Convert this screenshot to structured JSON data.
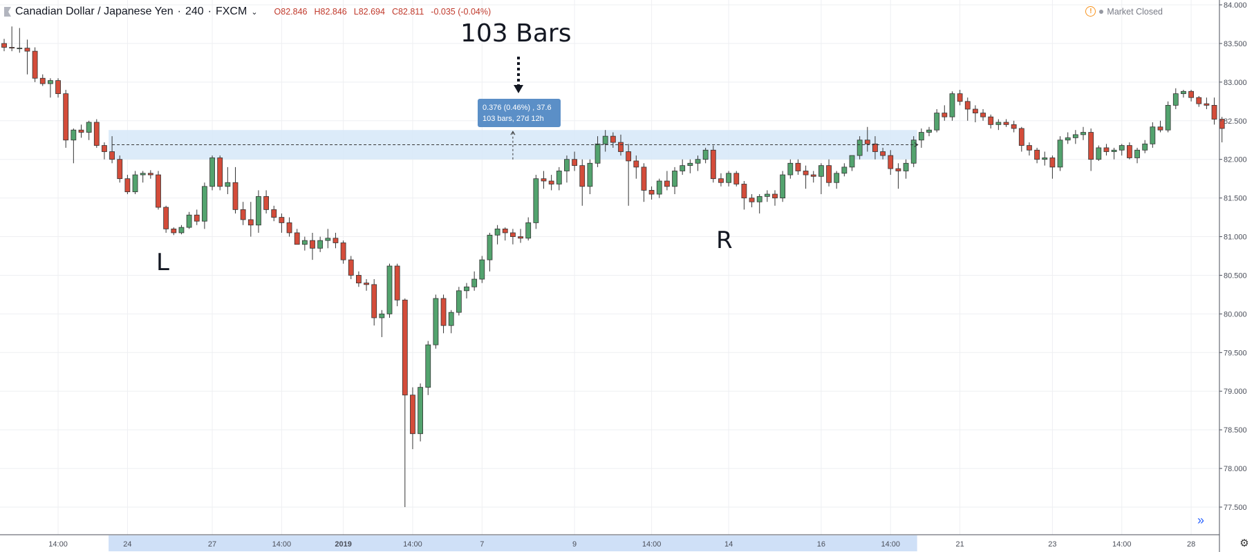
{
  "header": {
    "symbol": "Canadian Dollar / Japanese Yen",
    "interval": "240",
    "exchange": "FXCM",
    "open": "O82.846",
    "high": "H82.846",
    "low": "L82.694",
    "close": "C82.811",
    "change": "-0.035 (-0.04%)",
    "market_status": "Market Closed"
  },
  "annotations": {
    "bars_title": "103 Bars",
    "left_label": "L",
    "right_label": "R",
    "measure_line1": "0.376 (0.46%) , 37.6",
    "measure_line2": "103 bars, 27d 12h"
  },
  "colors": {
    "up": "#53a36e",
    "down": "#d44c3a",
    "zone": "#d6e7f8",
    "tooltip": "#5b8fc7"
  },
  "icons": [
    "flag-icon",
    "chevron-down-icon",
    "warning-icon",
    "gear-icon",
    "scroll-right-icon"
  ],
  "chart_data": {
    "type": "candlestick",
    "y_axis": {
      "ticks": [
        "84.000",
        "83.500",
        "83.000",
        "82.500",
        "82.000",
        "81.500",
        "81.000",
        "80.500",
        "80.000",
        "79.500",
        "79.000",
        "78.500",
        "78.000",
        "77.500"
      ],
      "min": 77.2,
      "max": 84.0
    },
    "x_axis": {
      "ticks": [
        {
          "label": "14:00",
          "bar": 7
        },
        {
          "label": "24",
          "bar": 16
        },
        {
          "label": "27",
          "bar": 27
        },
        {
          "label": "14:00",
          "bar": 36
        },
        {
          "label": "2019",
          "bar": 44
        },
        {
          "label": "14:00",
          "bar": 53
        },
        {
          "label": "7",
          "bar": 62
        },
        {
          "label": "9",
          "bar": 74
        },
        {
          "label": "14:00",
          "bar": 84
        },
        {
          "label": "14",
          "bar": 94
        },
        {
          "label": "16",
          "bar": 106
        },
        {
          "label": "14:00",
          "bar": 115
        },
        {
          "label": "21",
          "bar": 124
        },
        {
          "label": "23",
          "bar": 136
        },
        {
          "label": "14:00",
          "bar": 145
        },
        {
          "label": "28",
          "bar": 154
        }
      ]
    },
    "measure_zone": {
      "from_bar": 14,
      "to_bar": 118,
      "low": 82.0,
      "high": 82.38,
      "mid": 82.19
    },
    "candles": [
      [
        83.5,
        83.56,
        83.4,
        83.45
      ],
      [
        83.45,
        83.72,
        83.4,
        83.44
      ],
      [
        83.44,
        83.7,
        83.38,
        83.44
      ],
      [
        83.44,
        83.55,
        83.1,
        83.4
      ],
      [
        83.4,
        83.45,
        83.0,
        83.05
      ],
      [
        83.05,
        83.1,
        82.95,
        82.98
      ],
      [
        82.98,
        83.05,
        82.8,
        83.02
      ],
      [
        83.02,
        83.05,
        82.8,
        82.85
      ],
      [
        82.85,
        82.9,
        82.15,
        82.25
      ],
      [
        82.25,
        82.4,
        81.95,
        82.38
      ],
      [
        82.38,
        82.45,
        82.28,
        82.35
      ],
      [
        82.35,
        82.5,
        82.25,
        82.48
      ],
      [
        82.48,
        82.52,
        82.15,
        82.18
      ],
      [
        82.18,
        82.22,
        82.0,
        82.1
      ],
      [
        82.1,
        82.3,
        81.95,
        82.0
      ],
      [
        82.0,
        82.05,
        81.7,
        81.75
      ],
      [
        81.75,
        81.8,
        81.55,
        81.58
      ],
      [
        81.58,
        81.85,
        81.55,
        81.8
      ],
      [
        81.8,
        81.85,
        81.7,
        81.82
      ],
      [
        81.82,
        81.86,
        81.75,
        81.8
      ],
      [
        81.8,
        81.85,
        81.35,
        81.38
      ],
      [
        81.38,
        81.4,
        81.05,
        81.1
      ],
      [
        81.1,
        81.12,
        81.02,
        81.05
      ],
      [
        81.05,
        81.15,
        81.03,
        81.12
      ],
      [
        81.12,
        81.32,
        81.1,
        81.28
      ],
      [
        81.28,
        81.35,
        81.15,
        81.2
      ],
      [
        81.2,
        81.7,
        81.1,
        81.65
      ],
      [
        81.65,
        82.05,
        81.6,
        82.02
      ],
      [
        82.02,
        82.05,
        81.6,
        81.65
      ],
      [
        81.65,
        81.9,
        81.55,
        81.7
      ],
      [
        81.7,
        81.9,
        81.3,
        81.35
      ],
      [
        81.35,
        81.45,
        81.15,
        81.22
      ],
      [
        81.22,
        81.45,
        81.0,
        81.15
      ],
      [
        81.15,
        81.6,
        81.05,
        81.52
      ],
      [
        81.52,
        81.6,
        81.3,
        81.35
      ],
      [
        81.35,
        81.4,
        81.2,
        81.25
      ],
      [
        81.25,
        81.3,
        81.05,
        81.18
      ],
      [
        81.18,
        81.25,
        81.0,
        81.05
      ],
      [
        81.05,
        81.1,
        80.95,
        80.9
      ],
      [
        80.9,
        81.0,
        80.82,
        80.95
      ],
      [
        80.95,
        81.05,
        80.7,
        80.85
      ],
      [
        80.85,
        81.0,
        80.8,
        80.95
      ],
      [
        80.95,
        81.1,
        80.85,
        80.98
      ],
      [
        80.98,
        81.05,
        80.85,
        80.92
      ],
      [
        80.92,
        80.95,
        80.65,
        80.7
      ],
      [
        80.7,
        80.75,
        80.45,
        80.5
      ],
      [
        80.5,
        80.55,
        80.35,
        80.4
      ],
      [
        80.4,
        80.45,
        80.3,
        80.38
      ],
      [
        80.38,
        80.45,
        79.85,
        79.95
      ],
      [
        79.95,
        80.05,
        79.7,
        80.0
      ],
      [
        80.0,
        80.65,
        79.95,
        80.62
      ],
      [
        80.62,
        80.65,
        80.1,
        80.18
      ],
      [
        80.18,
        80.2,
        77.5,
        78.95
      ],
      [
        78.95,
        79.05,
        78.25,
        78.45
      ],
      [
        78.45,
        79.1,
        78.35,
        79.05
      ],
      [
        79.05,
        79.65,
        78.95,
        79.6
      ],
      [
        79.6,
        80.25,
        79.55,
        80.2
      ],
      [
        80.2,
        80.25,
        79.75,
        79.85
      ],
      [
        79.85,
        80.05,
        79.75,
        80.02
      ],
      [
        80.02,
        80.35,
        79.98,
        80.3
      ],
      [
        80.3,
        80.4,
        80.2,
        80.35
      ],
      [
        80.35,
        80.55,
        80.3,
        80.45
      ],
      [
        80.45,
        80.75,
        80.4,
        80.7
      ],
      [
        80.7,
        81.05,
        80.55,
        81.02
      ],
      [
        81.02,
        81.15,
        80.9,
        81.1
      ],
      [
        81.1,
        81.12,
        80.95,
        81.05
      ],
      [
        81.05,
        81.1,
        80.9,
        81.0
      ],
      [
        81.0,
        81.1,
        80.92,
        80.98
      ],
      [
        80.98,
        81.25,
        80.95,
        81.18
      ],
      [
        81.18,
        81.8,
        81.1,
        81.75
      ],
      [
        81.75,
        81.85,
        81.62,
        81.72
      ],
      [
        81.72,
        81.8,
        81.6,
        81.68
      ],
      [
        81.68,
        81.9,
        81.6,
        81.85
      ],
      [
        81.85,
        82.05,
        81.7,
        82.0
      ],
      [
        82.0,
        82.1,
        81.85,
        81.92
      ],
      [
        81.92,
        82.0,
        81.4,
        81.65
      ],
      [
        81.65,
        82.0,
        81.55,
        81.95
      ],
      [
        81.95,
        82.3,
        81.9,
        82.2
      ],
      [
        82.2,
        82.38,
        82.1,
        82.3
      ],
      [
        82.3,
        82.35,
        82.15,
        82.22
      ],
      [
        82.22,
        82.32,
        82.05,
        82.1
      ],
      [
        82.1,
        82.2,
        81.4,
        81.98
      ],
      [
        81.98,
        82.05,
        81.75,
        81.9
      ],
      [
        81.9,
        81.95,
        81.45,
        81.6
      ],
      [
        81.6,
        81.65,
        81.48,
        81.55
      ],
      [
        81.55,
        81.75,
        81.5,
        81.72
      ],
      [
        81.72,
        81.85,
        81.6,
        81.65
      ],
      [
        81.65,
        81.9,
        81.55,
        81.85
      ],
      [
        81.85,
        82.0,
        81.8,
        81.92
      ],
      [
        81.92,
        82.0,
        81.82,
        81.95
      ],
      [
        81.95,
        82.05,
        81.85,
        82.0
      ],
      [
        82.0,
        82.15,
        81.95,
        82.12
      ],
      [
        82.12,
        82.18,
        81.7,
        81.75
      ],
      [
        81.75,
        81.82,
        81.65,
        81.7
      ],
      [
        81.7,
        81.85,
        81.65,
        81.82
      ],
      [
        81.82,
        81.85,
        81.65,
        81.68
      ],
      [
        81.68,
        81.72,
        81.35,
        81.5
      ],
      [
        81.5,
        81.55,
        81.38,
        81.45
      ],
      [
        81.45,
        81.55,
        81.3,
        81.52
      ],
      [
        81.52,
        81.6,
        81.45,
        81.55
      ],
      [
        81.55,
        81.6,
        81.4,
        81.5
      ],
      [
        81.5,
        81.85,
        81.45,
        81.8
      ],
      [
        81.8,
        82.0,
        81.75,
        81.95
      ],
      [
        81.95,
        82.0,
        81.8,
        81.85
      ],
      [
        81.85,
        81.92,
        81.62,
        81.8
      ],
      [
        81.8,
        81.85,
        81.7,
        81.78
      ],
      [
        81.78,
        81.95,
        81.55,
        81.92
      ],
      [
        81.92,
        82.0,
        81.65,
        81.7
      ],
      [
        81.7,
        81.85,
        81.62,
        81.82
      ],
      [
        81.82,
        81.95,
        81.78,
        81.9
      ],
      [
        81.9,
        82.05,
        81.85,
        82.05
      ],
      [
        82.05,
        82.3,
        82.0,
        82.25
      ],
      [
        82.25,
        82.42,
        82.1,
        82.2
      ],
      [
        82.2,
        82.3,
        82.0,
        82.1
      ],
      [
        82.1,
        82.15,
        82.0,
        82.05
      ],
      [
        82.05,
        82.12,
        81.8,
        81.88
      ],
      [
        81.88,
        81.95,
        81.62,
        81.85
      ],
      [
        81.85,
        82.0,
        81.75,
        81.95
      ],
      [
        81.95,
        82.3,
        81.9,
        82.25
      ],
      [
        82.25,
        82.4,
        82.15,
        82.35
      ],
      [
        82.35,
        82.42,
        82.3,
        82.38
      ],
      [
        82.38,
        82.65,
        82.35,
        82.6
      ],
      [
        82.6,
        82.7,
        82.5,
        82.55
      ],
      [
        82.55,
        82.88,
        82.5,
        82.85
      ],
      [
        82.85,
        82.9,
        82.7,
        82.75
      ],
      [
        82.75,
        82.8,
        82.5,
        82.65
      ],
      [
        82.65,
        82.7,
        82.48,
        82.6
      ],
      [
        82.6,
        82.65,
        82.5,
        82.55
      ],
      [
        82.55,
        82.58,
        82.4,
        82.45
      ],
      [
        82.45,
        82.52,
        82.38,
        82.48
      ],
      [
        82.48,
        82.52,
        82.42,
        82.45
      ],
      [
        82.45,
        82.5,
        82.35,
        82.4
      ],
      [
        82.4,
        82.42,
        82.1,
        82.18
      ],
      [
        82.18,
        82.22,
        82.05,
        82.12
      ],
      [
        82.12,
        82.15,
        81.95,
        82.0
      ],
      [
        82.0,
        82.1,
        81.92,
        82.02
      ],
      [
        82.02,
        82.05,
        81.75,
        81.9
      ],
      [
        81.9,
        82.3,
        81.85,
        82.25
      ],
      [
        82.25,
        82.35,
        82.2,
        82.28
      ],
      [
        82.28,
        82.38,
        82.2,
        82.32
      ],
      [
        82.32,
        82.42,
        82.25,
        82.35
      ],
      [
        82.35,
        82.4,
        81.85,
        82.0
      ],
      [
        82.0,
        82.18,
        81.98,
        82.15
      ],
      [
        82.15,
        82.2,
        82.05,
        82.1
      ],
      [
        82.1,
        82.15,
        82.0,
        82.12
      ],
      [
        82.12,
        82.2,
        82.05,
        82.18
      ],
      [
        82.18,
        82.22,
        82.0,
        82.02
      ],
      [
        82.02,
        82.15,
        81.95,
        82.12
      ],
      [
        82.12,
        82.25,
        82.08,
        82.2
      ],
      [
        82.2,
        82.48,
        82.15,
        82.42
      ],
      [
        82.42,
        82.5,
        82.35,
        82.38
      ],
      [
        82.38,
        82.75,
        82.35,
        82.7
      ],
      [
        82.7,
        82.92,
        82.65,
        82.85
      ],
      [
        82.85,
        82.9,
        82.8,
        82.88
      ],
      [
        82.88,
        82.9,
        82.75,
        82.8
      ],
      [
        82.8,
        82.82,
        82.68,
        82.72
      ],
      [
        82.72,
        82.8,
        82.65,
        82.7
      ],
      [
        82.7,
        82.8,
        82.45,
        82.52
      ],
      [
        82.52,
        82.55,
        82.22,
        82.4
      ]
    ]
  }
}
